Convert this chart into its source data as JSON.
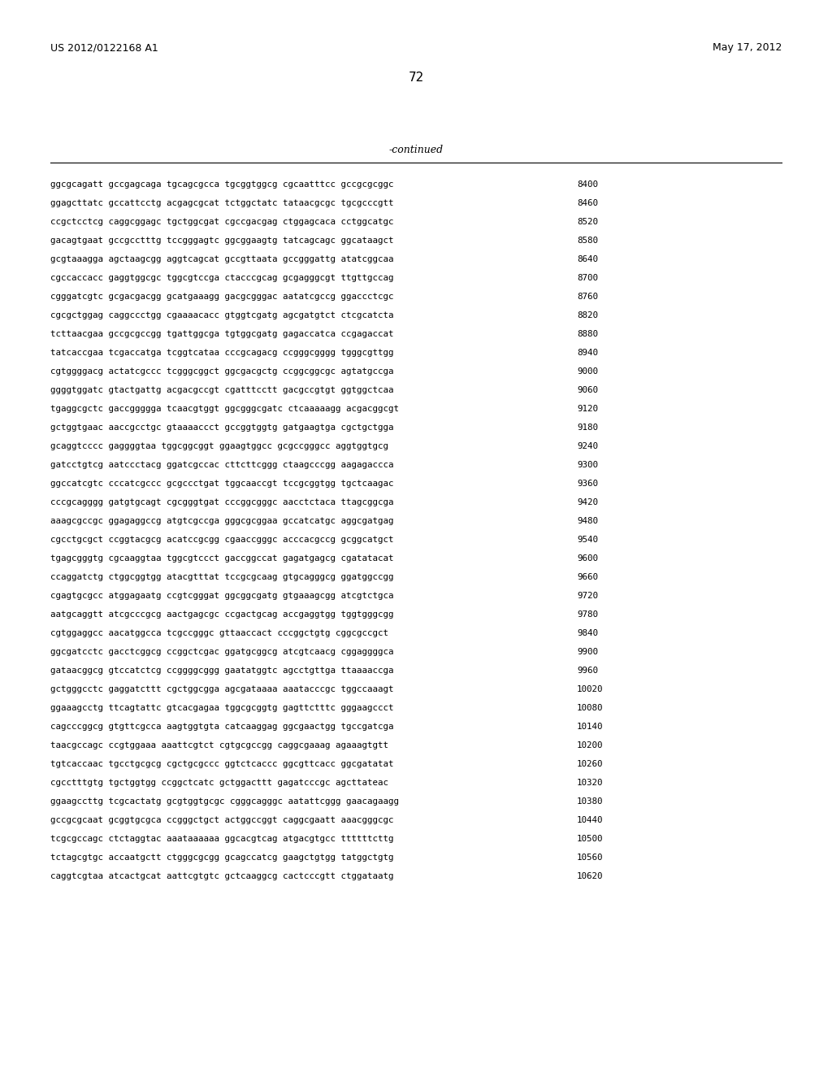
{
  "header_left": "US 2012/0122168 A1",
  "header_right": "May 17, 2012",
  "page_number": "72",
  "continued_label": "-continued",
  "background_color": "#ffffff",
  "text_color": "#000000",
  "sequences": [
    [
      "ggcgcagatt gccgagcaga tgcagcgcca tgcggtggcg cgcaatttcc gccgcgcggc",
      "8400"
    ],
    [
      "ggagcttatc gccattcctg acgagcgcat tctggctatc tataacgcgc tgcgcccgtt",
      "8460"
    ],
    [
      "ccgctcctcg caggcggagc tgctggcgat cgccgacgag ctggagcaca cctggcatgc",
      "8520"
    ],
    [
      "gacagtgaat gccgcctttg tccgggagtc ggcggaagtg tatcagcagc ggcataagct",
      "8580"
    ],
    [
      "gcgtaaagga agctaagcgg aggtcagcat gccgttaata gccgggattg atatcggcaa",
      "8640"
    ],
    [
      "cgccaccacc gaggtggcgc tggcgtccga ctacccgcag gcgagggcgt ttgttgccag",
      "8700"
    ],
    [
      "cgggatcgtc gcgacgacgg gcatgaaagg gacgcgggac aatatcgccg ggaccctcgc",
      "8760"
    ],
    [
      "cgcgctggag caggccctgg cgaaaacacc gtggtcgatg agcgatgtct ctcgcatcta",
      "8820"
    ],
    [
      "tcttaacgaa gccgcgccgg tgattggcga tgtggcgatg gagaccatca ccgagaccat",
      "8880"
    ],
    [
      "tatcaccgaa tcgaccatga tcggtcataa cccgcagacg ccgggcgggg tgggcgttgg",
      "8940"
    ],
    [
      "cgtggggacg actatcgccc tcgggcggct ggcgacgctg ccggcggcgc agtatgccga",
      "9000"
    ],
    [
      "ggggtggatc gtactgattg acgacgccgt cgatttcctt gacgccgtgt ggtggctcaa",
      "9060"
    ],
    [
      "tgaggcgctc gaccggggga tcaacgtggt ggcgggcgatc ctcaaaaagg acgacggcgt",
      "9120"
    ],
    [
      "gctggtgaac aaccgcctgc gtaaaaccct gccggtggtg gatgaagtga cgctgctgga",
      "9180"
    ],
    [
      "gcaggtcccc gaggggtaa tggcggcggt ggaagtggcc gcgccgggcc aggtggtgcg",
      "9240"
    ],
    [
      "gatcctgtcg aatccctacg ggatcgccac cttcttcggg ctaagcccgg aagagaccca",
      "9300"
    ],
    [
      "ggccatcgtc cccatcgccc gcgccctgat tggcaaccgt tccgcggtgg tgctcaagac",
      "9360"
    ],
    [
      "cccgcagggg gatgtgcagt cgcgggtgat cccggcgggc aacctctaca ttagcggcga",
      "9420"
    ],
    [
      "aaagcgccgc ggagaggccg atgtcgccga gggcgcggaa gccatcatgc aggcgatgag",
      "9480"
    ],
    [
      "cgcctgcgct ccggtacgcg acatccgcgg cgaaccgggc acccacgccg gcggcatgct",
      "9540"
    ],
    [
      "tgagcgggtg cgcaaggtaa tggcgtccct gaccggccat gagatgagcg cgatatacat",
      "9600"
    ],
    [
      "ccaggatctg ctggcggtgg atacgtttat tccgcgcaag gtgcagggcg ggatggccgg",
      "9660"
    ],
    [
      "cgagtgcgcc atggagaatg ccgtcgggat ggcggcgatg gtgaaagcgg atcgtctgca",
      "9720"
    ],
    [
      "aatgcaggtt atcgcccgcg aactgagcgc ccgactgcag accgaggtgg tggtgggcgg",
      "9780"
    ],
    [
      "cgtggaggcc aacatggcca tcgccgggc gttaaccact cccggctgtg cggcgccgct",
      "9840"
    ],
    [
      "ggcgatcctc gacctcggcg ccggctcgac ggatgcggcg atcgtcaacg cggaggggca",
      "9900"
    ],
    [
      "gataacggcg gtccatctcg ccggggcggg gaatatggtc agcctgttga ttaaaaccga",
      "9960"
    ],
    [
      "gctgggcctc gaggatcttt cgctggcgga agcgataaaa aaatacccgc tggccaaagt",
      "10020"
    ],
    [
      "ggaaagcctg ttcagtattc gtcacgagaa tggcgcggtg gagttctttc gggaagccct",
      "10080"
    ],
    [
      "cagcccggcg gtgttcgcca aagtggtgta catcaaggag ggcgaactgg tgccgatcga",
      "10140"
    ],
    [
      "taacgccagc ccgtggaaa aaattcgtct cgtgcgccgg caggcgaaag agaaagtgtt",
      "10200"
    ],
    [
      "tgtcaccaac tgcctgcgcg cgctgcgccc ggtctcaccc ggcgttcacc ggcgatatat",
      "10260"
    ],
    [
      "cgcctttgtg tgctggtgg ccggctcatc gctggacttt gagatcccgc agcttateac",
      "10320"
    ],
    [
      "ggaagccttg tcgcactatg gcgtggtgcgc cgggcagggc aatattcggg gaacagaagg",
      "10380"
    ],
    [
      "gccgcgcaat gcggtgcgca ccgggctgct actggccggt caggcgaatt aaacgggcgc",
      "10440"
    ],
    [
      "tcgcgccagc ctctaggtac aaataaaaaa ggcacgtcag atgacgtgcc ttttttcttg",
      "10500"
    ],
    [
      "tctagcgtgc accaatgctt ctgggcgcgg gcagccatcg gaagctgtgg tatggctgtg",
      "10560"
    ],
    [
      "caggtcgtaa atcactgcat aattcgtgtc gctcaaggcg cactcccgtt ctggataatg",
      "10620"
    ]
  ]
}
